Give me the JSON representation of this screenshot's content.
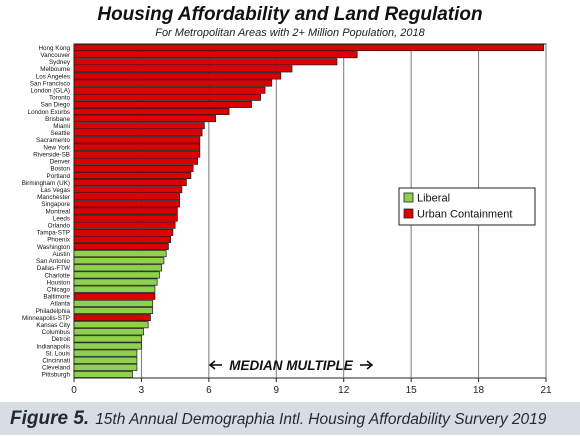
{
  "footer": {
    "label": "Figure 5.",
    "text": "15th Annual Demographia Intl. Housing Affordability Survery 2019"
  },
  "colors": {
    "liberal": "#8fd14f",
    "urban_containment": "#dd0000",
    "plot_background": "#ffffff",
    "grid": "#777777",
    "footer_background": "#d7dde3"
  },
  "chart_data": {
    "type": "bar",
    "orientation": "horizontal",
    "title": "Housing Affordability and Land Regulation",
    "subtitle": "For Metropolitan Areas with 2+ Million Population, 2018",
    "annotation": "MEDIAN MULTIPLE",
    "xlim": [
      0,
      21
    ],
    "xticks": [
      0,
      3,
      6,
      9,
      12,
      15,
      18,
      21
    ],
    "grid": "vertical",
    "legend": {
      "placement": "right",
      "entries": [
        {
          "name": "Liberal",
          "color": "#8fd14f"
        },
        {
          "name": "Urban Containment",
          "color": "#dd0000"
        }
      ]
    },
    "categories": [
      "Hong Kong",
      "Vancouver",
      "Sydney",
      "Melbourne",
      "Los Angeles",
      "San Francisco",
      "London (GLA)",
      "Toronto",
      "San Diego",
      "London Exurbs",
      "Brisbane",
      "Miami",
      "Seattle",
      "Sacramento",
      "New York",
      "Riverside-SB",
      "Denver",
      "Boston",
      "Portland",
      "Birmingham (UK)",
      "Las Vegas",
      "Manchester",
      "Singapore",
      "Montreal",
      "Leeds",
      "Orlando",
      "Tampa-STP",
      "Phoenix",
      "Washington",
      "Austin",
      "San Antonio",
      "Dallas-FTW",
      "Charlotte",
      "Houston",
      "Chicago",
      "Baltimore",
      "Atlanta",
      "Philadelphia",
      "Minneapolis-STP",
      "Kansas City",
      "Columbus",
      "Detroit",
      "Indianapolis",
      "St. Louis",
      "Cincinnati",
      "Cleveland",
      "Pittsburgh"
    ],
    "values": [
      20.9,
      12.6,
      11.7,
      9.7,
      9.2,
      8.8,
      8.5,
      8.3,
      7.9,
      6.9,
      6.3,
      5.8,
      5.7,
      5.6,
      5.6,
      5.6,
      5.5,
      5.3,
      5.2,
      5.0,
      4.8,
      4.7,
      4.7,
      4.6,
      4.6,
      4.5,
      4.4,
      4.3,
      4.2,
      4.1,
      4.0,
      3.9,
      3.8,
      3.7,
      3.6,
      3.6,
      3.5,
      3.5,
      3.4,
      3.3,
      3.1,
      3.0,
      3.0,
      2.8,
      2.8,
      2.8,
      2.6
    ],
    "group": [
      "Urban Containment",
      "Urban Containment",
      "Urban Containment",
      "Urban Containment",
      "Urban Containment",
      "Urban Containment",
      "Urban Containment",
      "Urban Containment",
      "Urban Containment",
      "Urban Containment",
      "Urban Containment",
      "Urban Containment",
      "Urban Containment",
      "Urban Containment",
      "Urban Containment",
      "Urban Containment",
      "Urban Containment",
      "Urban Containment",
      "Urban Containment",
      "Urban Containment",
      "Urban Containment",
      "Urban Containment",
      "Urban Containment",
      "Urban Containment",
      "Urban Containment",
      "Urban Containment",
      "Urban Containment",
      "Urban Containment",
      "Urban Containment",
      "Liberal",
      "Liberal",
      "Liberal",
      "Liberal",
      "Liberal",
      "Liberal",
      "Urban Containment",
      "Liberal",
      "Liberal",
      "Urban Containment",
      "Liberal",
      "Liberal",
      "Liberal",
      "Liberal",
      "Liberal",
      "Liberal",
      "Liberal",
      "Liberal"
    ]
  }
}
